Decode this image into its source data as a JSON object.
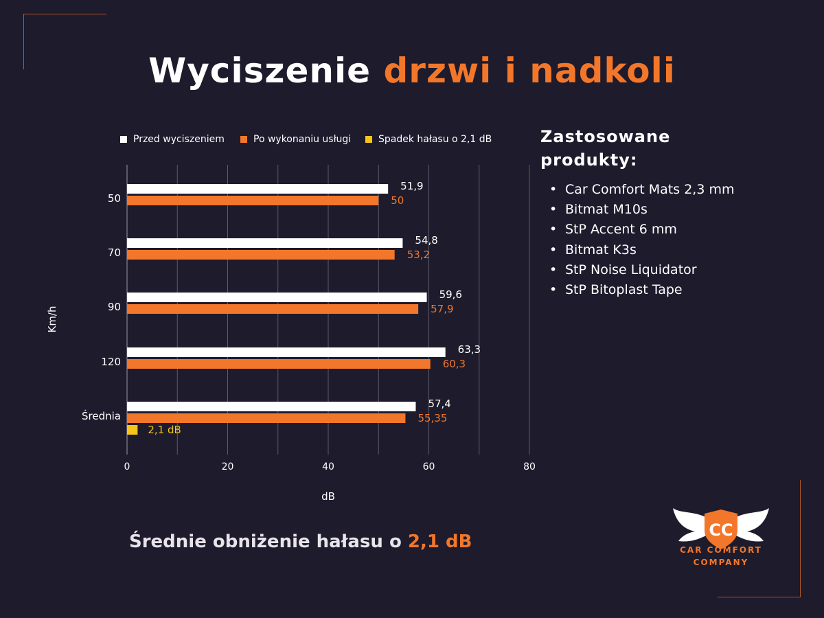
{
  "title": {
    "part1": "Wyciszenie",
    "part2": "drzwi i nadkoli"
  },
  "chart_data": {
    "type": "bar",
    "orientation": "horizontal",
    "categories": [
      "50",
      "70",
      "90",
      "120",
      "Średnia"
    ],
    "series": [
      {
        "name": "Przed wyciszeniem",
        "color": "#ffffff",
        "values": [
          51.9,
          54.8,
          59.6,
          63.3,
          57.4
        ],
        "labels": [
          "51,9",
          "54,8",
          "59,6",
          "63,3",
          "57,4"
        ]
      },
      {
        "name": "Po wykonaniu usługi",
        "color": "#f2772a",
        "values": [
          50,
          53.2,
          57.9,
          60.3,
          55.35
        ],
        "labels": [
          "50",
          "53,2",
          "57,9",
          "60,3",
          "55,35"
        ]
      },
      {
        "name": "Spadek hałasu o 2,1 dB",
        "color": "#f5c518",
        "values": [
          null,
          null,
          null,
          null,
          2.1
        ],
        "labels": [
          "",
          "",
          "",
          "",
          "2,1 dB"
        ]
      }
    ],
    "xlabel": "dB",
    "ylabel": "Km/h",
    "xlim": [
      0,
      80
    ],
    "xticks": [
      0,
      20,
      40,
      60,
      80
    ],
    "grid": true,
    "legend": "top"
  },
  "products": {
    "title": "Zastosowane produkty:",
    "items": [
      "Car Comfort Mats 2,3 mm",
      "Bitmat M10s",
      "StP Accent 6 mm",
      "Bitmat K3s",
      "StP Noise Liquidator",
      "StP Bitoplast Tape"
    ]
  },
  "summary": {
    "text": "Średnie obniżenie hałasu o ",
    "value": "2,1 dB"
  },
  "logo": {
    "line1": "CAR COMFORT",
    "line2": "COMPANY",
    "monogram": "CC"
  }
}
